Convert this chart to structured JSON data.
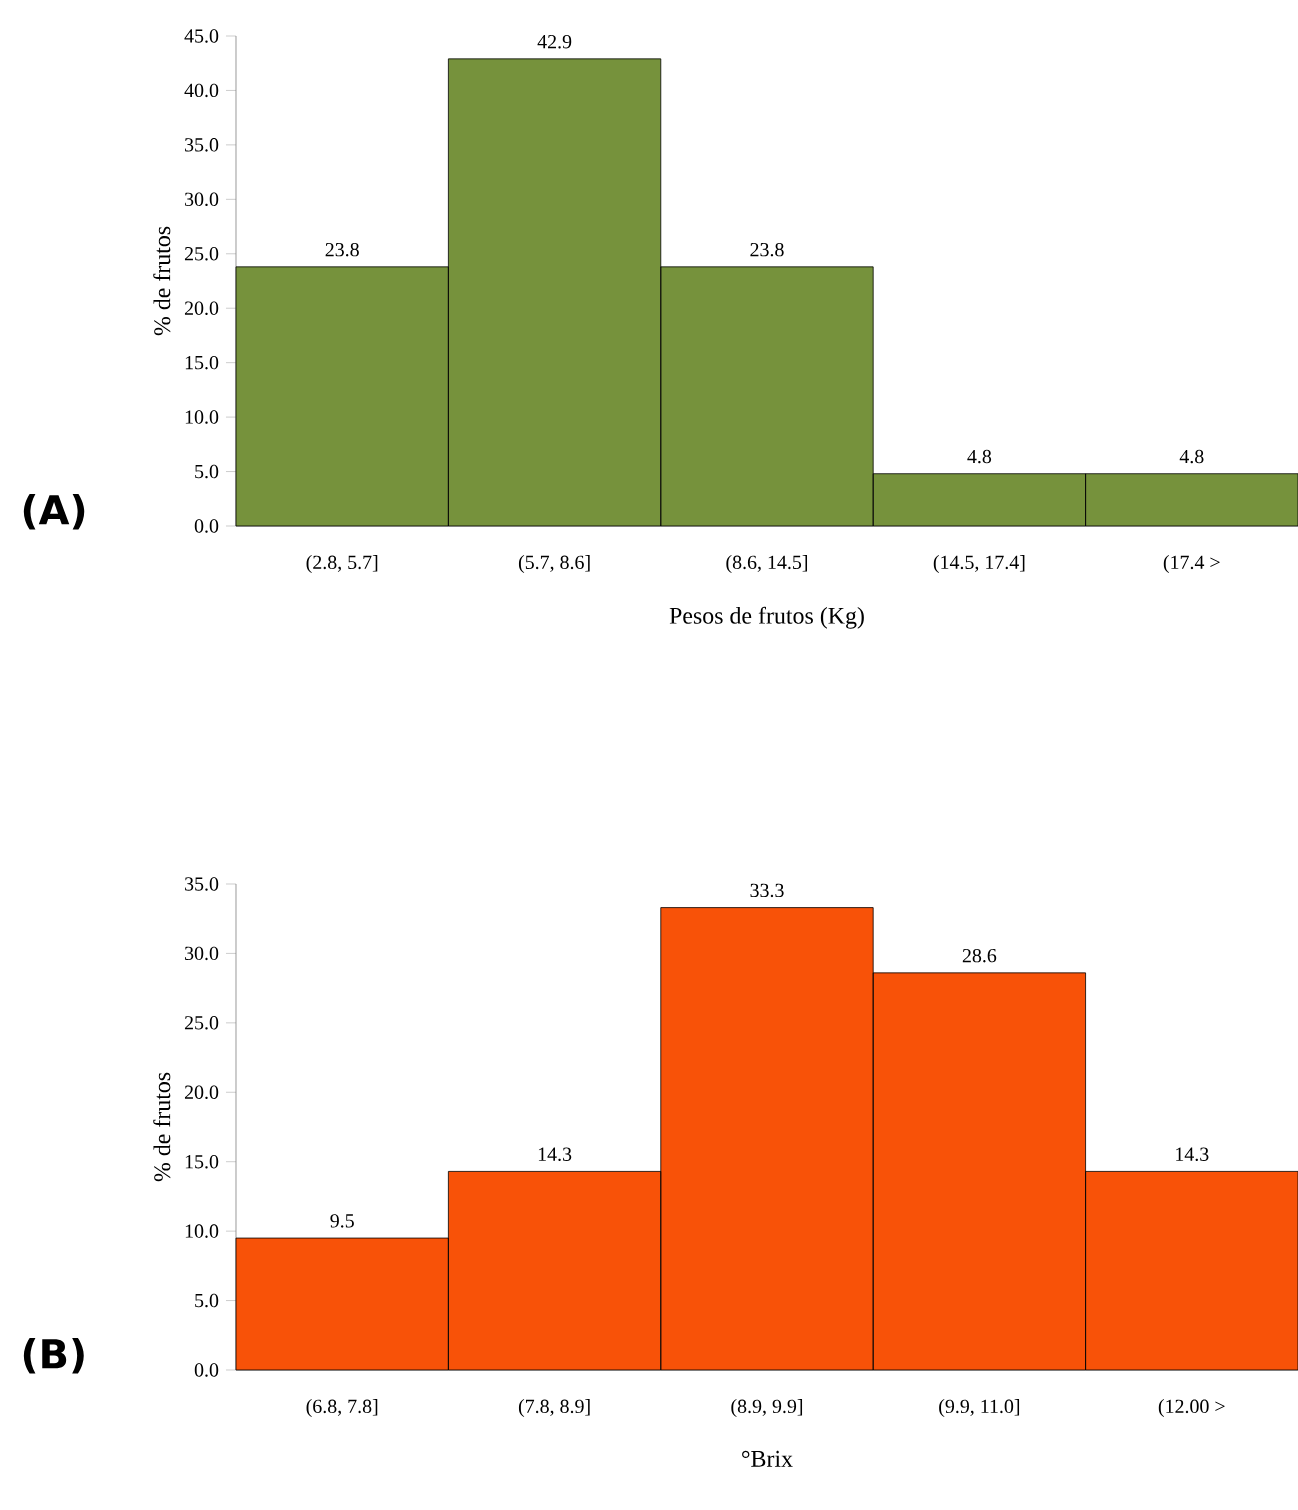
{
  "chart_data": [
    {
      "type": "bar",
      "xlabel": "Pesos de frutos (Kg)",
      "ylabel": "% de frutos",
      "annotations": [
        "(A)"
      ],
      "categories": [
        "(2.8, 5.7]",
        "(5.7, 8.6]",
        "(8.6, 14.5]",
        "(14.5, 17.4]",
        "(17.4 >"
      ],
      "values": [
        23.8,
        42.9,
        23.8,
        4.8,
        4.8
      ],
      "color": "#76923c",
      "data_labels": true,
      "grid": false,
      "ylim": [
        0,
        45
      ],
      "yticks": [
        {
          "value": 0,
          "label": "0.0"
        },
        {
          "value": 5,
          "label": "5.0"
        },
        {
          "value": 10,
          "label": "10.0"
        },
        {
          "value": 15,
          "label": "15.0"
        },
        {
          "value": 20,
          "label": "20.0"
        },
        {
          "value": 25,
          "label": "25.0"
        },
        {
          "value": 30,
          "label": "30.0"
        },
        {
          "value": 35,
          "label": "35.0"
        },
        {
          "value": 40,
          "label": "40.0"
        },
        {
          "value": 45,
          "label": "45.0"
        }
      ]
    },
    {
      "type": "bar",
      "xlabel": "°Brix",
      "ylabel": "% de frutos",
      "annotations": [
        "(B)"
      ],
      "categories": [
        "(6.8, 7.8]",
        "(7.8, 8.9]",
        "(8.9, 9.9]",
        "(9.9, 11.0]",
        "(12.00 >"
      ],
      "values": [
        9.5,
        14.3,
        33.3,
        28.6,
        14.3
      ],
      "color": "#f85208",
      "data_labels": true,
      "grid": false,
      "ylim": [
        0,
        35
      ],
      "yticks": [
        {
          "value": 0,
          "label": "0.0"
        },
        {
          "value": 5,
          "label": "5.0"
        },
        {
          "value": 10,
          "label": "10.0"
        },
        {
          "value": 15,
          "label": "15.0"
        },
        {
          "value": 20,
          "label": "20.0"
        },
        {
          "value": 25,
          "label": "25.0"
        },
        {
          "value": 30,
          "label": "30.0"
        },
        {
          "value": 35,
          "label": "35.0"
        }
      ]
    }
  ]
}
